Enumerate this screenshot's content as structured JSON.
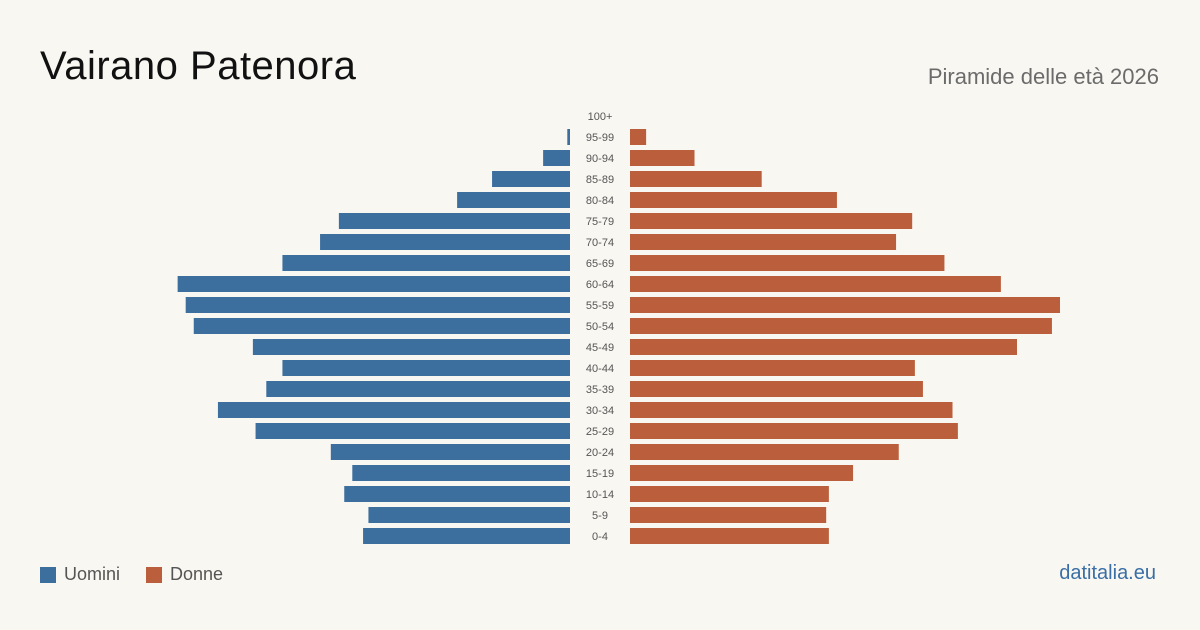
{
  "header": {
    "title": "Vairano Patenora",
    "subtitle": "Piramide delle età 2026"
  },
  "legend": {
    "men_label": "Uomini",
    "women_label": "Donne"
  },
  "brand": "datitalia.eu",
  "colors": {
    "men": "#3c6e9e",
    "women": "#bb5e3c",
    "background": "#f9f7f2"
  },
  "chart_data": {
    "type": "bar",
    "orientation": "horizontal-population-pyramid",
    "categories": [
      "100+",
      "95-99",
      "90-94",
      "85-89",
      "80-84",
      "75-79",
      "70-74",
      "65-69",
      "60-64",
      "55-59",
      "50-54",
      "45-49",
      "40-44",
      "35-39",
      "30-34",
      "25-29",
      "20-24",
      "15-19",
      "10-14",
      "5-9",
      "0-4"
    ],
    "series": [
      {
        "name": "Uomini",
        "values": [
          0,
          1,
          10,
          29,
          42,
          86,
          93,
          107,
          146,
          143,
          140,
          118,
          107,
          113,
          131,
          117,
          89,
          81,
          84,
          75,
          77
        ]
      },
      {
        "name": "Donne",
        "values": [
          0,
          6,
          24,
          49,
          77,
          105,
          99,
          117,
          138,
          160,
          157,
          144,
          106,
          109,
          120,
          122,
          100,
          83,
          74,
          73,
          74
        ]
      }
    ],
    "xlim": [
      0,
      160
    ],
    "grid": false,
    "legend_position": "bottom-left"
  }
}
